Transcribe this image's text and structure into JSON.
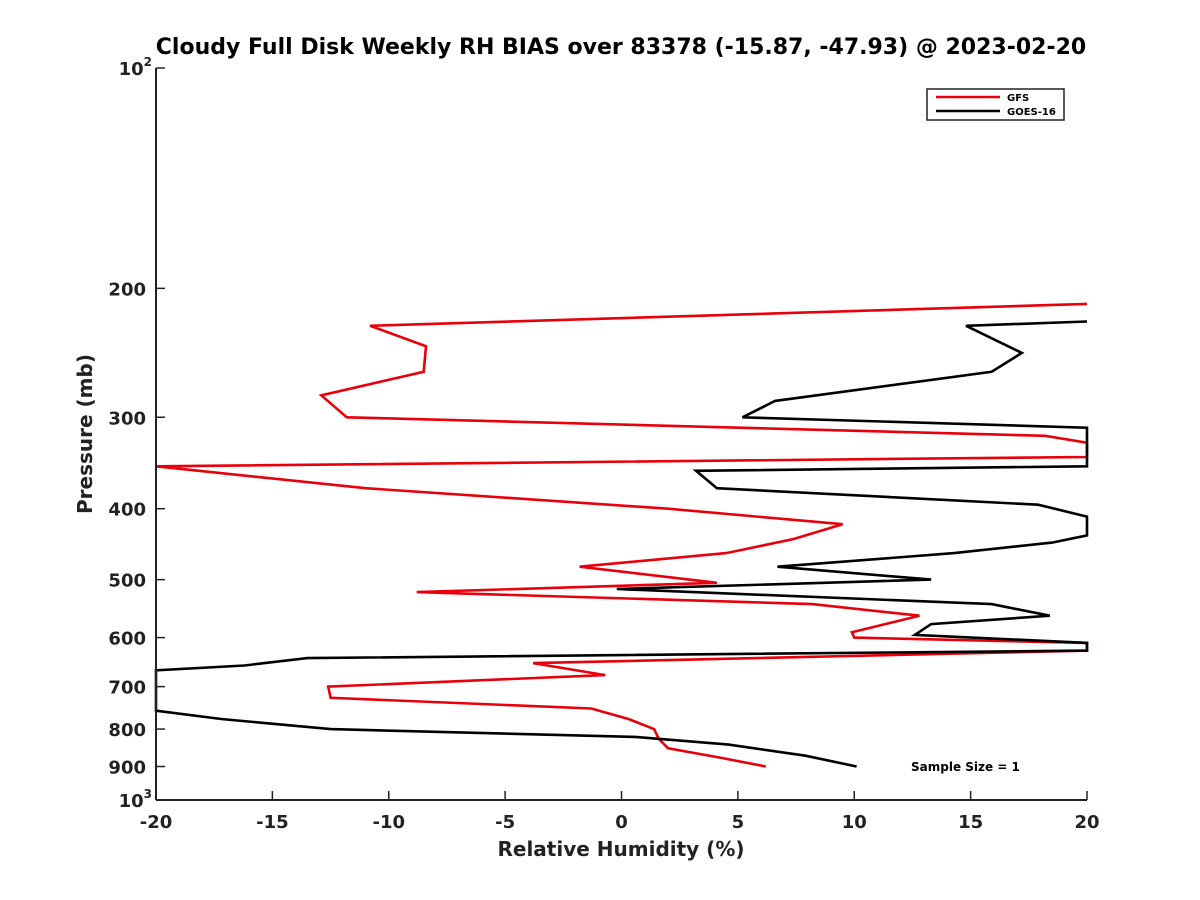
{
  "chart_data": {
    "type": "line",
    "title": "Cloudy Full Disk Weekly RH BIAS over 83378 (-15.87, -47.93) @ 2023-02-20",
    "xlabel": "Relative Humidity (%)",
    "ylabel": "Pressure (mb)",
    "xlim": [
      -20,
      20
    ],
    "ylim": [
      100,
      1000
    ],
    "y_scale": "log",
    "y_reversed": true,
    "grid": false,
    "legend_position": "top-right",
    "x_ticks": [
      "-20",
      "-15",
      "-10",
      "-5",
      "0",
      "5",
      "10",
      "15",
      "20"
    ],
    "x_tick_values": [
      -20,
      -15,
      -10,
      -5,
      0,
      5,
      10,
      15,
      20
    ],
    "y_ticks": [
      {
        "value": 100,
        "base": "10",
        "exp": "2"
      },
      {
        "value": 200,
        "label": "200"
      },
      {
        "value": 300,
        "label": "300"
      },
      {
        "value": 400,
        "label": "400"
      },
      {
        "value": 500,
        "label": "500"
      },
      {
        "value": 600,
        "label": "600"
      },
      {
        "value": 700,
        "label": "700"
      },
      {
        "value": 800,
        "label": "800"
      },
      {
        "value": 900,
        "label": "900"
      },
      {
        "value": 1000,
        "base": "10",
        "exp": "3"
      }
    ],
    "series": [
      {
        "name": "GFS",
        "color": "#e8000b",
        "points": [
          [
            6.2,
            900
          ],
          [
            4.2,
            875
          ],
          [
            2.0,
            850
          ],
          [
            1.6,
            825
          ],
          [
            1.4,
            800
          ],
          [
            0.3,
            775
          ],
          [
            -1.3,
            750
          ],
          [
            -12.5,
            725
          ],
          [
            -12.6,
            700
          ],
          [
            -0.7,
            675
          ],
          [
            -3.8,
            650
          ],
          [
            20,
            625
          ],
          [
            20,
            610
          ],
          [
            10,
            600
          ],
          [
            9.9,
            590
          ],
          [
            12.8,
            560
          ],
          [
            8.2,
            540
          ],
          [
            -8.8,
            520
          ],
          [
            4.1,
            505
          ],
          [
            -1.8,
            480
          ],
          [
            4.5,
            460
          ],
          [
            7.4,
            440
          ],
          [
            9.5,
            420
          ],
          [
            2.0,
            400
          ],
          [
            -11.0,
            375
          ],
          [
            -20,
            350
          ],
          [
            20,
            340
          ],
          [
            20,
            325
          ],
          [
            18.2,
            318
          ],
          [
            -11.8,
            300
          ],
          [
            -12.9,
            280
          ],
          [
            -8.5,
            260
          ],
          [
            -8.4,
            240
          ],
          [
            -10.8,
            225
          ],
          [
            20,
            210
          ]
        ]
      },
      {
        "name": "GOES-16",
        "color": "#000000",
        "points": [
          [
            10.1,
            900
          ],
          [
            7.9,
            870
          ],
          [
            4.6,
            840
          ],
          [
            0.6,
            820
          ],
          [
            -12.5,
            800
          ],
          [
            -17.2,
            775
          ],
          [
            -20,
            755
          ],
          [
            -20,
            665
          ],
          [
            -16.2,
            655
          ],
          [
            -13.5,
            640
          ],
          [
            20,
            625
          ],
          [
            20,
            610
          ],
          [
            12.6,
            595
          ],
          [
            13.3,
            575
          ],
          [
            18.4,
            560
          ],
          [
            15.9,
            540
          ],
          [
            -0.2,
            515
          ],
          [
            13.3,
            500
          ],
          [
            6.7,
            480
          ],
          [
            14.3,
            460
          ],
          [
            18.5,
            445
          ],
          [
            20,
            435
          ],
          [
            20,
            410
          ],
          [
            17.9,
            395
          ],
          [
            4.1,
            375
          ],
          [
            3.2,
            355
          ],
          [
            20,
            350
          ],
          [
            20,
            310
          ],
          [
            5.2,
            300
          ],
          [
            6.6,
            285
          ],
          [
            15.9,
            260
          ],
          [
            17.2,
            245
          ],
          [
            14.8,
            225
          ],
          [
            20,
            222
          ]
        ]
      }
    ],
    "legend": [
      {
        "name": "GFS",
        "color": "#e8000b"
      },
      {
        "name": "GOES-16",
        "color": "#000000"
      }
    ],
    "annotations": [
      {
        "text": "Sample Size = 1"
      }
    ]
  }
}
